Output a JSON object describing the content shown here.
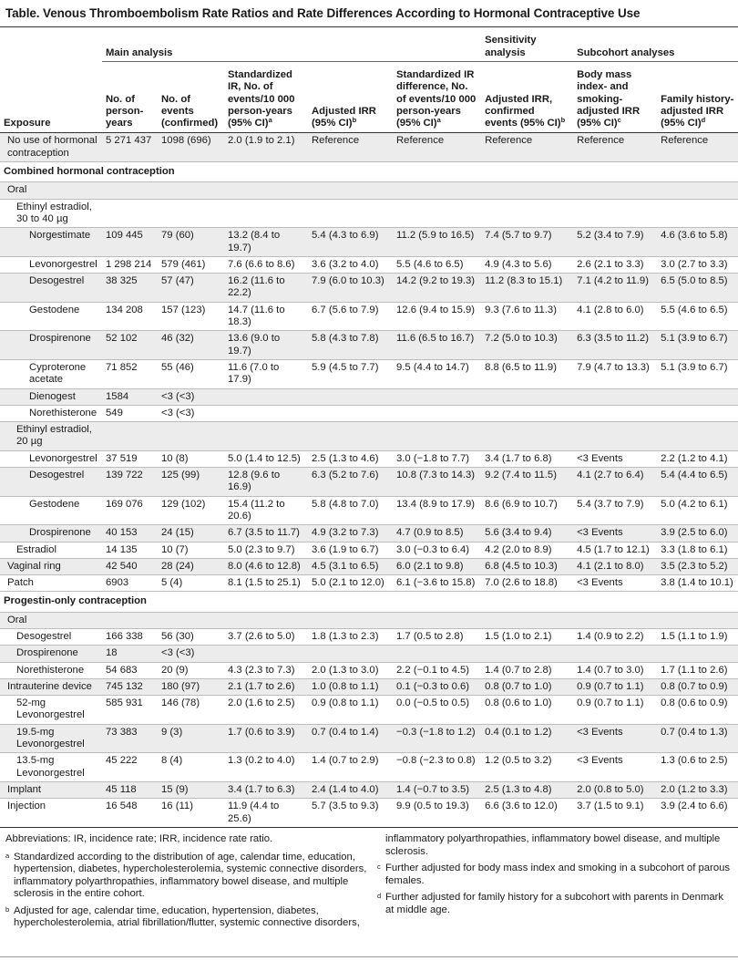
{
  "title": "Table. Venous Thromboembolism Rate Ratios and Rate Differences According to Hormonal Contraceptive Use",
  "groups": {
    "main": "Main analysis",
    "sensitivity": "Sensitivity analysis",
    "subcohort": "Subcohort analyses"
  },
  "columns": {
    "exposure": "Exposure",
    "person_years": "No. of person-years",
    "events": "No. of events (confirmed)",
    "std_ir": "Standardized IR, No. of events/10 000 person-years (95% CI)",
    "std_ir_sup": "a",
    "adj_irr": "Adjusted IRR (95% CI)",
    "adj_irr_sup": "b",
    "std_ird": "Standardized IR difference, No. of events/10 000 person-years (95% CI)",
    "std_ird_sup": "a",
    "sens_irr": "Adjusted IRR, confirmed events (95% CI)",
    "sens_irr_sup": "b",
    "bmi_irr": "Body mass index- and smoking-adjusted IRR (95% CI)",
    "bmi_irr_sup": "c",
    "fam_irr": "Family history-adjusted IRR (95% CI)",
    "fam_irr_sup": "d"
  },
  "rows": [
    {
      "type": "data",
      "indent": 0,
      "shade": true,
      "sep": true,
      "label": "No use of hormonal contraception",
      "py": "5 271 437",
      "ev": "1098 (696)",
      "ir": "2.0 (1.9 to 2.1)",
      "irr": "Reference",
      "ird": "Reference",
      "sirr": "Reference",
      "birr": "Reference",
      "firr": "Reference"
    },
    {
      "type": "section",
      "label": "Combined hormonal contraception"
    },
    {
      "type": "data",
      "indent": 0,
      "shade": true,
      "sep": true,
      "label": "Oral"
    },
    {
      "type": "data",
      "indent": 1,
      "shade": false,
      "sep": true,
      "label": "Ethinyl estradiol, 30 to 40 µg"
    },
    {
      "type": "data",
      "indent": 2,
      "shade": true,
      "sep": true,
      "label": "Norgestimate",
      "py": "109 445",
      "ev": "79 (60)",
      "ir": "13.2 (8.4 to 19.7)",
      "irr": "5.4 (4.3 to 6.9)",
      "ird": "11.2 (5.9 to 16.5)",
      "sirr": "7.4 (5.7 to 9.7)",
      "birr": "5.2 (3.4 to 7.9)",
      "firr": "4.6 (3.6 to 5.8)"
    },
    {
      "type": "data",
      "indent": 2,
      "shade": false,
      "sep": true,
      "label": "Levonorgestrel",
      "py": "1 298 214",
      "ev": "579 (461)",
      "ir": "7.6 (6.6 to 8.6)",
      "irr": "3.6 (3.2 to 4.0)",
      "ird": "5.5 (4.6 to 6.5)",
      "sirr": "4.9 (4.3 to 5.6)",
      "birr": "2.6 (2.1 to 3.3)",
      "firr": "3.0 (2.7 to 3.3)"
    },
    {
      "type": "data",
      "indent": 2,
      "shade": true,
      "sep": true,
      "label": "Desogestrel",
      "py": "38 325",
      "ev": "57 (47)",
      "ir": "16.2 (11.6 to 22.2)",
      "irr": "7.9 (6.0 to 10.3)",
      "ird": "14.2 (9.2 to 19.3)",
      "sirr": "11.2 (8.3 to 15.1)",
      "birr": "7.1 (4.2 to 11.9)",
      "firr": "6.5 (5.0 to 8.5)"
    },
    {
      "type": "data",
      "indent": 2,
      "shade": false,
      "sep": true,
      "label": "Gestodene",
      "py": "134 208",
      "ev": "157 (123)",
      "ir": "14.7 (11.6 to 18.3)",
      "irr": "6.7 (5.6 to 7.9)",
      "ird": "12.6 (9.4 to 15.9)",
      "sirr": "9.3 (7.6 to 11.3)",
      "birr": "4.1 (2.8 to 6.0)",
      "firr": "5.5 (4.6 to 6.5)"
    },
    {
      "type": "data",
      "indent": 2,
      "shade": true,
      "sep": true,
      "label": "Drospirenone",
      "py": "52 102",
      "ev": "46 (32)",
      "ir": "13.6 (9.0 to 19.7)",
      "irr": "5.8 (4.3 to 7.8)",
      "ird": "11.6 (6.5 to 16.7)",
      "sirr": "7.2 (5.0 to 10.3)",
      "birr": "6.3 (3.5 to 11.2)",
      "firr": "5.1 (3.9 to 6.7)"
    },
    {
      "type": "data",
      "indent": 2,
      "shade": false,
      "sep": true,
      "label": "Cyproterone acetate",
      "py": "71 852",
      "ev": "55 (46)",
      "ir": "11.6 (7.0 to 17.9)",
      "irr": "5.9 (4.5 to 7.7)",
      "ird": "9.5 (4.4 to 14.7)",
      "sirr": "8.8 (6.5 to 11.9)",
      "birr": "7.9 (4.7 to 13.3)",
      "firr": "5.1 (3.9 to 6.7)"
    },
    {
      "type": "data",
      "indent": 2,
      "shade": true,
      "sep": true,
      "label": "Dienogest",
      "py": "1584",
      "ev": "<3 (<3)"
    },
    {
      "type": "data",
      "indent": 2,
      "shade": false,
      "sep": true,
      "label": "Norethisterone",
      "py": "549",
      "ev": "<3 (<3)"
    },
    {
      "type": "data",
      "indent": 1,
      "shade": true,
      "sep": true,
      "label": "Ethinyl estradiol, 20 µg"
    },
    {
      "type": "data",
      "indent": 2,
      "shade": false,
      "sep": true,
      "label": "Levonorgestrel",
      "py": "37 519",
      "ev": "10 (8)",
      "ir": "5.0 (1.4 to 12.5)",
      "irr": "2.5 (1.3 to 4.6)",
      "ird": "3.0 (−1.8 to 7.7)",
      "sirr": "3.4 (1.7 to 6.8)",
      "birr": "<3 Events",
      "firr": "2.2 (1.2 to 4.1)"
    },
    {
      "type": "data",
      "indent": 2,
      "shade": true,
      "sep": true,
      "label": "Desogestrel",
      "py": "139 722",
      "ev": "125 (99)",
      "ir": "12.8 (9.6 to 16.9)",
      "irr": "6.3 (5.2 to 7.6)",
      "ird": "10.8 (7.3 to 14.3)",
      "sirr": "9.2 (7.4 to 11.5)",
      "birr": "4.1 (2.7 to 6.4)",
      "firr": "5.4 (4.4 to 6.5)"
    },
    {
      "type": "data",
      "indent": 2,
      "shade": false,
      "sep": true,
      "label": "Gestodene",
      "py": "169 076",
      "ev": "129 (102)",
      "ir": "15.4 (11.2 to 20.6)",
      "irr": "5.8 (4.8 to 7.0)",
      "ird": "13.4 (8.9 to 17.9)",
      "sirr": "8.6 (6.9 to 10.7)",
      "birr": "5.4 (3.7 to 7.9)",
      "firr": "5.0 (4.2 to 6.1)"
    },
    {
      "type": "data",
      "indent": 2,
      "shade": true,
      "sep": true,
      "label": "Drospirenone",
      "py": "40 153",
      "ev": "24 (15)",
      "ir": "6.7 (3.5 to 11.7)",
      "irr": "4.9 (3.2 to 7.3)",
      "ird": "4.7 (0.9 to 8.5)",
      "sirr": "5.6 (3.4 to 9.4)",
      "birr": "<3 Events",
      "firr": "3.9 (2.5 to 6.0)"
    },
    {
      "type": "data",
      "indent": 1,
      "shade": false,
      "sep": true,
      "label": "Estradiol",
      "py": "14 135",
      "ev": "10 (7)",
      "ir": "5.0 (2.3 to 9.7)",
      "irr": "3.6 (1.9 to 6.7)",
      "ird": "3.0 (−0.3 to 6.4)",
      "sirr": "4.2 (2.0 to 8.9)",
      "birr": "4.5 (1.7 to 12.1)",
      "firr": "3.3 (1.8 to 6.1)"
    },
    {
      "type": "data",
      "indent": 0,
      "shade": true,
      "sep": true,
      "label": "Vaginal ring",
      "py": "42 540",
      "ev": "28 (24)",
      "ir": "8.0 (4.6 to 12.8)",
      "irr": "4.5 (3.1 to 6.5)",
      "ird": "6.0 (2.1 to 9.8)",
      "sirr": "6.8 (4.5 to 10.3)",
      "birr": "4.1 (2.1 to 8.0)",
      "firr": "3.5 (2.3 to 5.2)"
    },
    {
      "type": "data",
      "indent": 0,
      "shade": false,
      "sep": true,
      "label": "Patch",
      "py": "6903",
      "ev": "5 (4)",
      "ir": "8.1 (1.5 to 25.1)",
      "irr": "5.0 (2.1 to 12.0)",
      "ird": "6.1 (−3.6 to 15.8)",
      "sirr": "7.0 (2.6 to 18.8)",
      "birr": "<3 Events",
      "firr": "3.8 (1.4 to 10.1)"
    },
    {
      "type": "section",
      "label": "Progestin-only contraception"
    },
    {
      "type": "data",
      "indent": 0,
      "shade": true,
      "sep": true,
      "label": "Oral"
    },
    {
      "type": "data",
      "indent": 1,
      "shade": false,
      "sep": true,
      "label": "Desogestrel",
      "py": "166 338",
      "ev": "56 (30)",
      "ir": "3.7 (2.6 to 5.0)",
      "irr": "1.8 (1.3 to 2.3)",
      "ird": "1.7 (0.5 to 2.8)",
      "sirr": "1.5 (1.0 to 2.1)",
      "birr": "1.4 (0.9 to 2.2)",
      "firr": "1.5 (1.1 to 1.9)"
    },
    {
      "type": "data",
      "indent": 1,
      "shade": true,
      "sep": true,
      "label": "Drospirenone",
      "py": "18",
      "ev": "<3 (<3)"
    },
    {
      "type": "data",
      "indent": 1,
      "shade": false,
      "sep": true,
      "label": "Norethisterone",
      "py": "54 683",
      "ev": "20 (9)",
      "ir": "4.3 (2.3 to 7.3)",
      "irr": "2.0 (1.3 to 3.0)",
      "ird": "2.2 (−0.1 to 4.5)",
      "sirr": "1.4 (0.7 to 2.8)",
      "birr": "1.4 (0.7 to 3.0)",
      "firr": "1.7 (1.1 to 2.6)"
    },
    {
      "type": "data",
      "indent": 0,
      "shade": true,
      "sep": true,
      "label": "Intrauterine device",
      "py": "745 132",
      "ev": "180 (97)",
      "ir": "2.1 (1.7 to 2.6)",
      "irr": "1.0 (0.8 to 1.1)",
      "ird": "0.1 (−0.3 to 0.6)",
      "sirr": "0.8 (0.7 to 1.0)",
      "birr": "0.9 (0.7 to 1.1)",
      "firr": "0.8 (0.7 to 0.9)"
    },
    {
      "type": "data",
      "indent": 1,
      "shade": false,
      "sep": true,
      "label": "52-mg Levonorgestrel",
      "py": "585 931",
      "ev": "146 (78)",
      "ir": "2.0 (1.6 to 2.5)",
      "irr": "0.9 (0.8 to 1.1)",
      "ird": "0.0 (−0.5 to 0.5)",
      "sirr": "0.8 (0.6 to 1.0)",
      "birr": "0.9 (0.7 to 1.1)",
      "firr": "0.8 (0.6 to 0.9)"
    },
    {
      "type": "data",
      "indent": 1,
      "shade": true,
      "sep": true,
      "label": "19.5-mg Levonorgestrel",
      "py": "73 383",
      "ev": "9 (3)",
      "ir": "1.7 (0.6 to 3.9)",
      "irr": "0.7 (0.4 to 1.4)",
      "ird": "−0.3 (−1.8 to 1.2)",
      "sirr": "0.4 (0.1 to 1.2)",
      "birr": "<3 Events",
      "firr": "0.7 (0.4 to 1.3)"
    },
    {
      "type": "data",
      "indent": 1,
      "shade": false,
      "sep": true,
      "label": "13.5-mg Levonorgestrel",
      "py": "45 222",
      "ev": "8 (4)",
      "ir": "1.3 (0.2 to 4.0)",
      "irr": "1.4 (0.7 to 2.9)",
      "ird": "−0.8 (−2.3 to 0.8)",
      "sirr": "1.2 (0.5 to 3.2)",
      "birr": "<3 Events",
      "firr": "1.3 (0.6 to 2.5)"
    },
    {
      "type": "data",
      "indent": 0,
      "shade": true,
      "sep": true,
      "label": "Implant",
      "py": "45 118",
      "ev": "15 (9)",
      "ir": "3.4 (1.7 to 6.3)",
      "irr": "2.4 (1.4 to 4.0)",
      "ird": "1.4 (−0.7 to 3.5)",
      "sirr": "2.5 (1.3 to 4.8)",
      "birr": "2.0 (0.8 to 5.0)",
      "firr": "2.0 (1.2 to 3.3)"
    },
    {
      "type": "data",
      "indent": 0,
      "shade": false,
      "sep": false,
      "last": true,
      "label": "Injection",
      "py": "16 548",
      "ev": "16 (11)",
      "ir": "11.9 (4.4 to 25.6)",
      "irr": "5.7 (3.5 to 9.3)",
      "ird": "9.9 (0.5 to 19.3)",
      "sirr": "6.6 (3.6 to 12.0)",
      "birr": "3.7 (1.5 to 9.1)",
      "firr": "3.9 (2.4 to 6.6)"
    }
  ],
  "footnotes": {
    "abbreviations": "Abbreviations: IR, incidence rate; IRR, incidence rate ratio.",
    "a_mark": "a",
    "a": "Standardized according to the distribution of age, calendar time, education, hypertension, diabetes, hypercholesterolemia, systemic connective disorders, inflammatory polyarthropathies, inflammatory bowel disease, and multiple sclerosis in the entire cohort.",
    "b_mark": "b",
    "b_left": "Adjusted for age, calendar time, education, hypertension, diabetes, hypercholesterolemia, atrial fibrillation/flutter, systemic connective disorders,",
    "b_right": "inflammatory polyarthropathies, inflammatory bowel disease, and multiple sclerosis.",
    "c_mark": "c",
    "c": "Further adjusted for body mass index and smoking in a subcohort of parous females.",
    "d_mark": "d",
    "d": "Further adjusted for family history for a subcohort with parents in Denmark at middle age."
  }
}
